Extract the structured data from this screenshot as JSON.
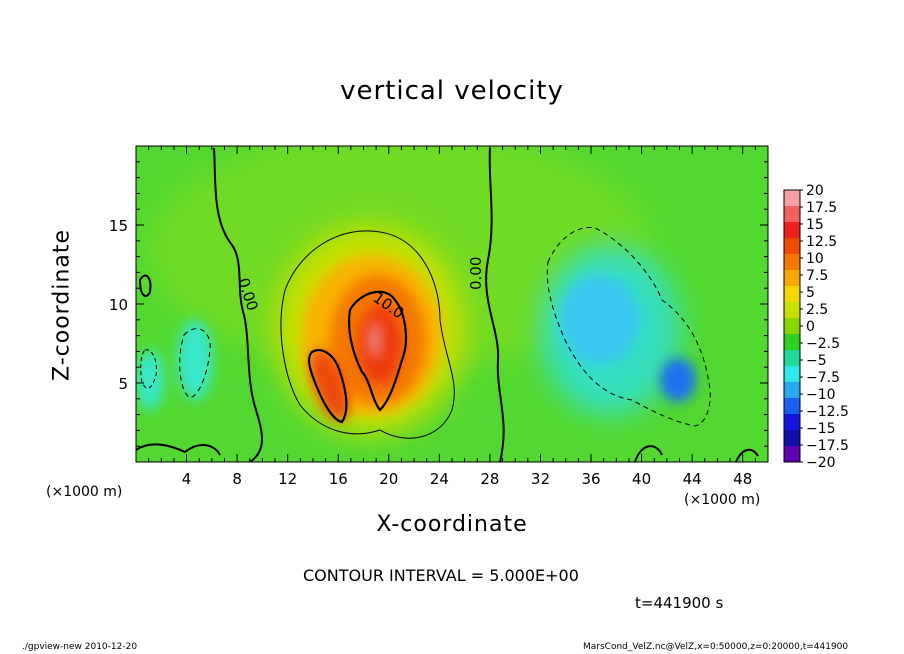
{
  "chart_data": {
    "type": "heatmap",
    "title": "vertical velocity",
    "xlabel": "X-coordinate",
    "ylabel": "Z-coordinate",
    "x_unit": "(×1000 m)",
    "y_unit": "(×1000 m)",
    "xlim": [
      0,
      50
    ],
    "ylim": [
      0,
      20
    ],
    "x_ticks": [
      4,
      8,
      12,
      16,
      20,
      24,
      28,
      32,
      36,
      40,
      44,
      48
    ],
    "y_ticks": [
      5,
      10,
      15
    ],
    "colorbar": {
      "levels": [
        20,
        17.5,
        15,
        12.5,
        10,
        7.5,
        5,
        2.5,
        0,
        -2.5,
        -5,
        -7.5,
        -10,
        -12.5,
        -15,
        -17.5,
        -20
      ],
      "labels": [
        "20",
        "17.5",
        "15",
        "12.5",
        "10",
        "7.5",
        "5",
        "2.5",
        "0",
        "−2.5",
        "−5",
        "−7.5",
        "−10",
        "−12.5",
        "−15",
        "−17.5",
        "−20"
      ],
      "colors": [
        "#f4a0a0",
        "#f06060",
        "#ee2020",
        "#f04a00",
        "#f47800",
        "#f8a800",
        "#f2d800",
        "#c8e000",
        "#88d800",
        "#30d020",
        "#20d898",
        "#30e8e8",
        "#28a8f0",
        "#1a5ff0",
        "#1414e0",
        "#1010a8",
        "#6000b0"
      ]
    },
    "contour_labels": [
      "0.00",
      "10.0",
      "0.00"
    ],
    "contour_interval": 5.0
  },
  "annotations": {
    "contour_interval_text": "CONTOUR INTERVAL = 5.000E+00",
    "time_text": "t=441900 s",
    "unit_left": "(×1000 m)",
    "unit_right": "(×1000 m)"
  },
  "footer": {
    "left": "./gpview-new 2010-12-20",
    "right": "MarsCond_VelZ.nc@VelZ,x=0:50000,z=0:20000,t=441900"
  }
}
